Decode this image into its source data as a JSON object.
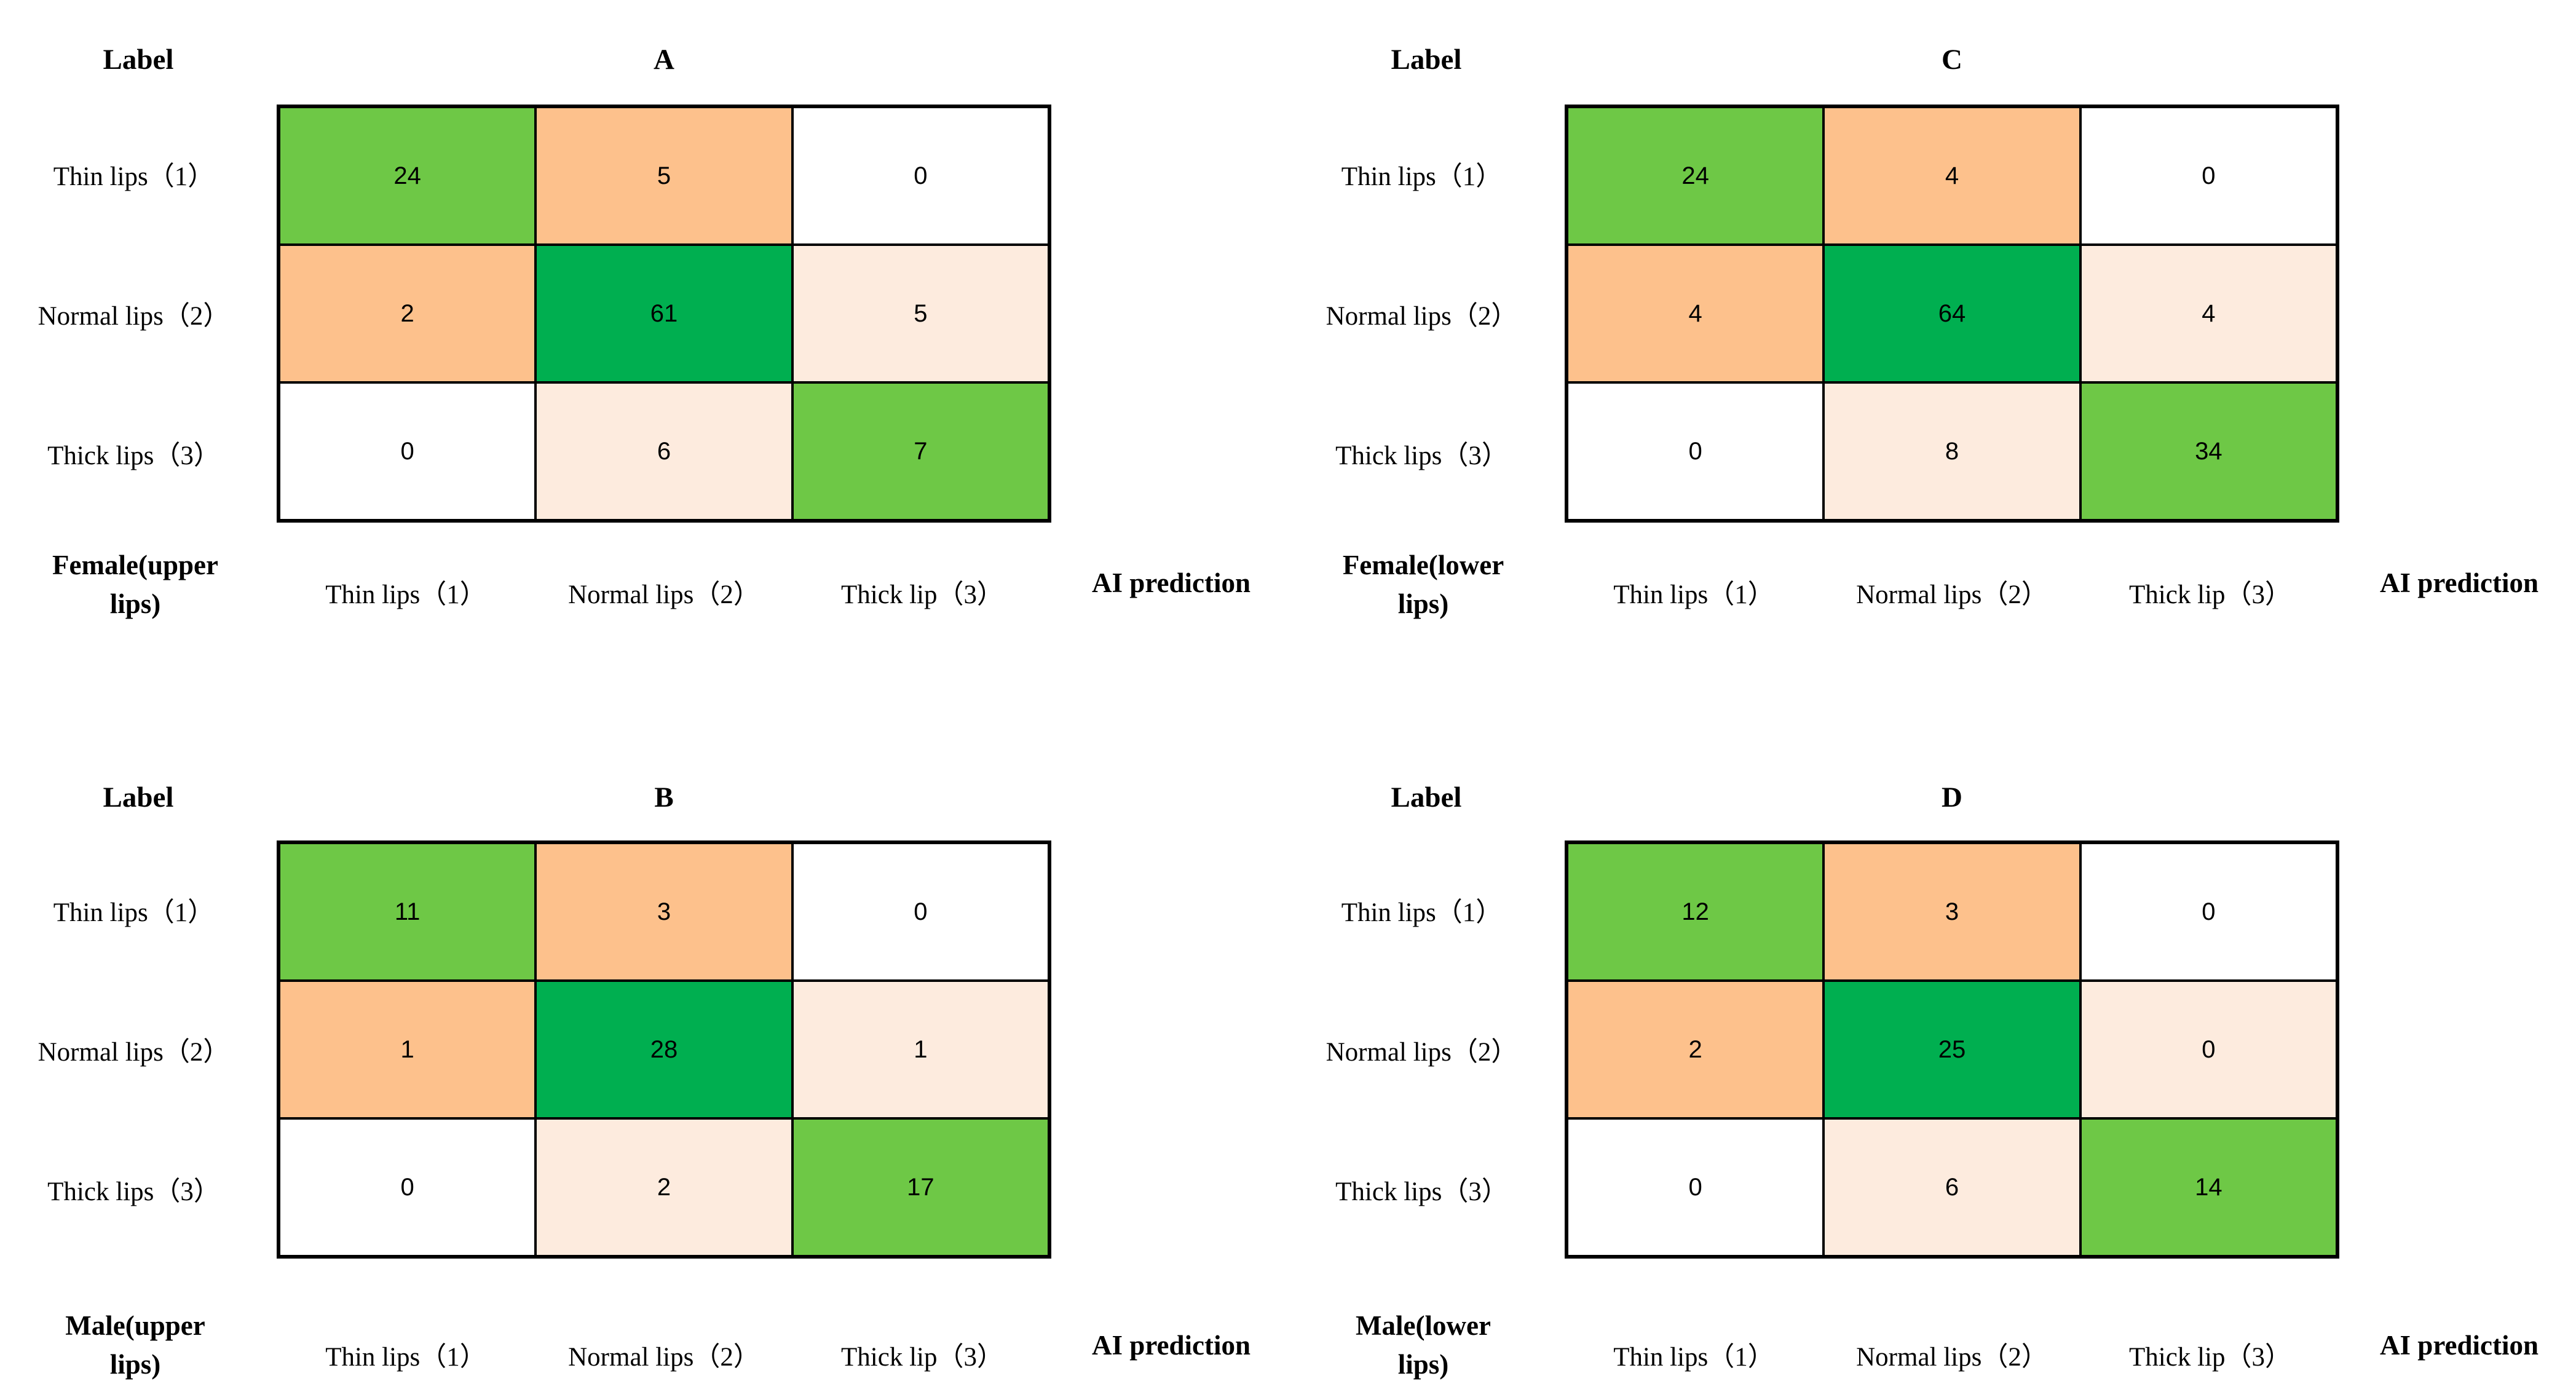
{
  "colors": {
    "green": "#6EC846",
    "dark_green": "#00AF50",
    "orange": "#FDC18C",
    "peach": "#FDEBDE",
    "white": "#FFFFFF",
    "border": "#000000",
    "text": "#000000"
  },
  "cell_fill_pattern": [
    [
      "green",
      "orange",
      "white"
    ],
    [
      "orange",
      "dark_green",
      "peach"
    ],
    [
      "white",
      "peach",
      "green"
    ]
  ],
  "shared": {
    "label_header": "Label",
    "ai_prediction": "AI prediction"
  },
  "chart_data": [
    {
      "type": "heatmap",
      "title": "A",
      "group": "Female(upper lips)",
      "group_lines": [
        "Female(upper",
        "lips)"
      ],
      "ylabel": "Label",
      "xlabel": "AI prediction",
      "rows": [
        "Thin lips（1）",
        "Normal lips（2）",
        "Thick lips（3）"
      ],
      "cols": [
        "Thin lips（1）",
        "Normal lips（2）",
        "Thick lip（3）"
      ],
      "values": [
        [
          24,
          5,
          0
        ],
        [
          2,
          61,
          5
        ],
        [
          0,
          6,
          7
        ]
      ]
    },
    {
      "type": "heatmap",
      "title": "C",
      "group": "Female(lower lips)",
      "group_lines": [
        "Female(lower",
        "lips)"
      ],
      "ylabel": "Label",
      "xlabel": "AI prediction",
      "rows": [
        "Thin lips（1）",
        "Normal lips（2）",
        "Thick lips（3）"
      ],
      "cols": [
        "Thin lips（1）",
        "Normal lips（2）",
        "Thick lip（3）"
      ],
      "values": [
        [
          24,
          4,
          0
        ],
        [
          4,
          64,
          4
        ],
        [
          0,
          8,
          34
        ]
      ]
    },
    {
      "type": "heatmap",
      "title": "B",
      "group": "Male(upper lips)",
      "group_lines": [
        "Male(upper",
        "lips)"
      ],
      "ylabel": "Label",
      "xlabel": "AI prediction",
      "rows": [
        "Thin lips（1）",
        "Normal lips（2）",
        "Thick lips（3）"
      ],
      "cols": [
        "Thin lips（1）",
        "Normal lips（2）",
        "Thick lip（3）"
      ],
      "values": [
        [
          11,
          3,
          0
        ],
        [
          1,
          28,
          1
        ],
        [
          0,
          2,
          17
        ]
      ]
    },
    {
      "type": "heatmap",
      "title": "D",
      "group": "Male(lower lips)",
      "group_lines": [
        "Male(lower",
        "lips)"
      ],
      "ylabel": "Label",
      "xlabel": "AI prediction",
      "rows": [
        "Thin lips（1）",
        "Normal lips（2）",
        "Thick lips（3）"
      ],
      "cols": [
        "Thin lips（1）",
        "Normal lips（2）",
        "Thick lip（3）"
      ],
      "values": [
        [
          12,
          3,
          0
        ],
        [
          2,
          25,
          0
        ],
        [
          0,
          6,
          14
        ]
      ]
    }
  ]
}
